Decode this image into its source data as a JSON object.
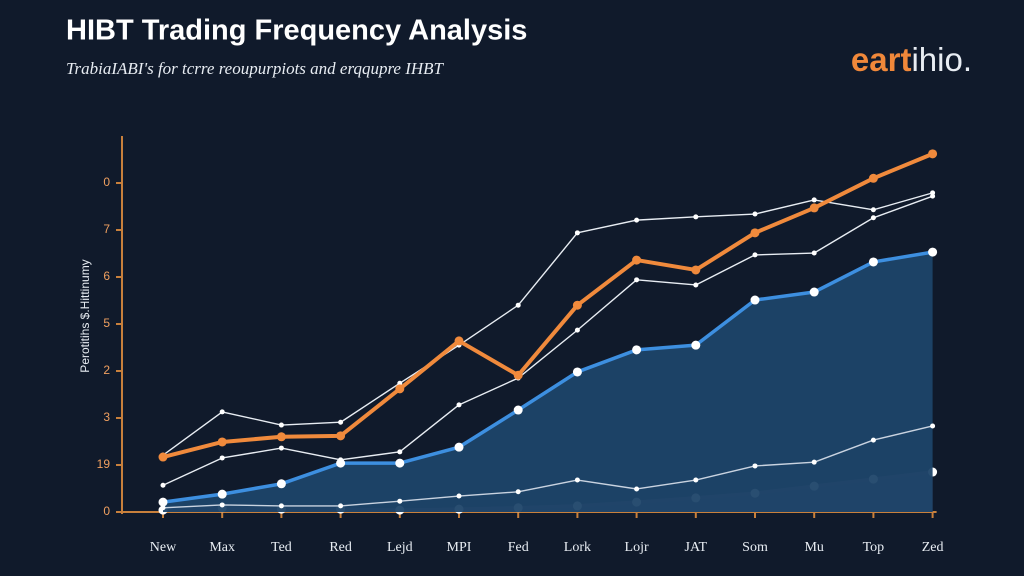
{
  "chart_data": {
    "type": "line",
    "title": "HIBT Trading Frequency Analysis",
    "subtitle": "TrabiaIABI's for tcrre reoupurpiots and erqqupre IHBT",
    "logo_accent": "eart",
    "logo_rest": "ihio.",
    "y_label": "Perotitihs $.Hittinumy",
    "categories": [
      "New",
      "Max",
      "Ted",
      "Red",
      "Lejd",
      "MPI",
      "Fed",
      "Lork",
      "Lojr",
      "JAT",
      "Som",
      "Mu",
      "Top",
      "Zed"
    ],
    "ylim": [
      0,
      8
    ],
    "yticks": [
      {
        "value": 0,
        "label": "0"
      },
      {
        "value": 1,
        "label": "19"
      },
      {
        "value": 2,
        "label": "3"
      },
      {
        "value": 3,
        "label": "2"
      },
      {
        "value": 4,
        "label": "5"
      },
      {
        "value": 5,
        "label": "6"
      },
      {
        "value": 6,
        "label": "7"
      },
      {
        "value": 7,
        "label": "0"
      }
    ],
    "series": [
      {
        "color": "#4a4560",
        "area": true,
        "values": [
          0.04,
          0.09,
          0.06,
          0.06,
          0.04,
          0.06,
          0.09,
          0.13,
          0.21,
          0.3,
          0.4,
          0.55,
          0.7,
          0.85
        ]
      },
      {
        "color": "#3d8fe0",
        "area": true,
        "area_color": "#1d4469",
        "values": [
          0.21,
          0.38,
          0.6,
          1.04,
          1.04,
          1.38,
          2.17,
          2.98,
          3.45,
          3.55,
          4.51,
          4.68,
          5.32,
          5.53
        ]
      },
      {
        "color": "#c9d3e0",
        "values": [
          0.09,
          0.15,
          0.13,
          0.13,
          0.23,
          0.34,
          0.43,
          0.68,
          0.49,
          0.68,
          0.98,
          1.06,
          1.53,
          1.83
        ]
      },
      {
        "color": "#e8edf3",
        "values": [
          0.57,
          1.15,
          1.36,
          1.11,
          1.28,
          2.28,
          2.85,
          3.87,
          4.94,
          4.83,
          5.47,
          5.51,
          6.26,
          6.72
        ]
      },
      {
        "color": "#e8edf3",
        "values": [
          1.21,
          2.13,
          1.85,
          1.91,
          2.74,
          3.55,
          4.4,
          5.94,
          6.21,
          6.28,
          6.34,
          6.64,
          6.43,
          6.79
        ]
      },
      {
        "color": "#f08a3c",
        "values": [
          1.17,
          1.49,
          1.6,
          1.62,
          2.62,
          3.64,
          2.91,
          4.4,
          5.36,
          5.15,
          5.94,
          6.47,
          7.1,
          7.62
        ]
      }
    ]
  }
}
